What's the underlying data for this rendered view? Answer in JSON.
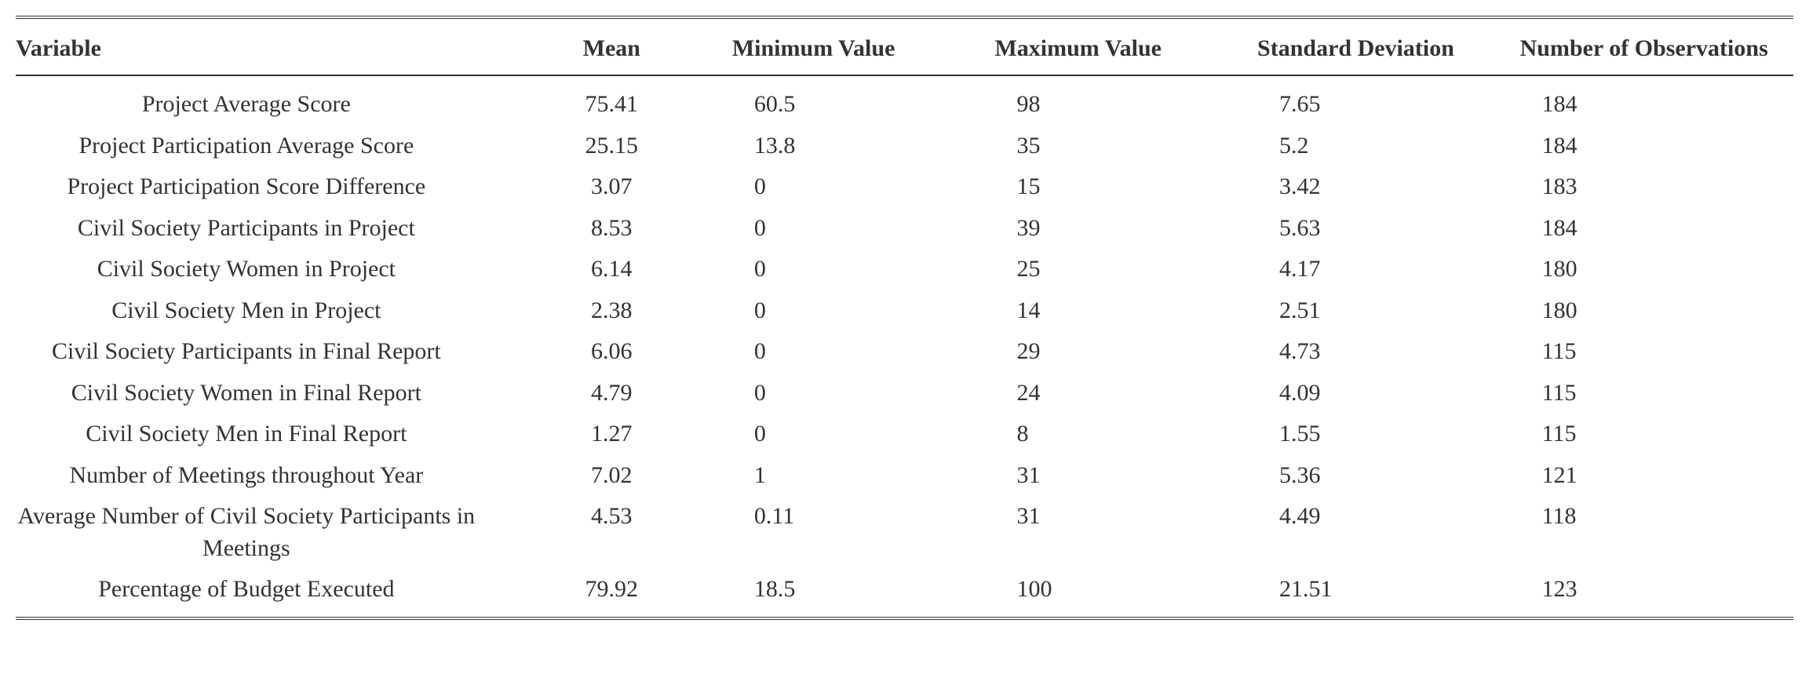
{
  "table": {
    "type": "table",
    "background_color": "#ffffff",
    "text_color": "#333333",
    "font_family": "Times New Roman",
    "font_size_pt": 22,
    "border_color": "#333333",
    "columns": [
      {
        "key": "variable",
        "label": "Variable",
        "align": "center",
        "header_align": "left"
      },
      {
        "key": "mean",
        "label": "Mean",
        "align": "center",
        "header_align": "center"
      },
      {
        "key": "min",
        "label": "Minimum Value",
        "align": "left",
        "header_align": "left"
      },
      {
        "key": "max",
        "label": "Maximum Value",
        "align": "left",
        "header_align": "left"
      },
      {
        "key": "std",
        "label": "Standard Deviation",
        "align": "left",
        "header_align": "left"
      },
      {
        "key": "obs",
        "label": "Number of Observations",
        "align": "left",
        "header_align": "left"
      }
    ],
    "rows": [
      {
        "variable": "Project Average Score",
        "mean": "75.41",
        "min": "60.5",
        "max": "98",
        "std": "7.65",
        "obs": "184"
      },
      {
        "variable": "Project Participation Average Score",
        "mean": "25.15",
        "min": "13.8",
        "max": "35",
        "std": "5.2",
        "obs": "184"
      },
      {
        "variable": "Project Participation Score Difference",
        "mean": "3.07",
        "min": "0",
        "max": "15",
        "std": "3.42",
        "obs": "183"
      },
      {
        "variable": "Civil Society Participants in Project",
        "mean": "8.53",
        "min": "0",
        "max": "39",
        "std": "5.63",
        "obs": "184"
      },
      {
        "variable": "Civil Society Women in Project",
        "mean": "6.14",
        "min": "0",
        "max": "25",
        "std": "4.17",
        "obs": "180"
      },
      {
        "variable": "Civil Society Men in Project",
        "mean": "2.38",
        "min": "0",
        "max": "14",
        "std": "2.51",
        "obs": "180"
      },
      {
        "variable": "Civil Society Participants in Final Report",
        "mean": "6.06",
        "min": "0",
        "max": "29",
        "std": "4.73",
        "obs": "115"
      },
      {
        "variable": "Civil Society Women in Final Report",
        "mean": "4.79",
        "min": "0",
        "max": "24",
        "std": "4.09",
        "obs": "115"
      },
      {
        "variable": "Civil Society Men in Final Report",
        "mean": "1.27",
        "min": "0",
        "max": "8",
        "std": "1.55",
        "obs": "115"
      },
      {
        "variable": "Number of Meetings throughout Year",
        "mean": "7.02",
        "min": "1",
        "max": "31",
        "std": "5.36",
        "obs": "121"
      },
      {
        "variable": "Average Number of Civil Society Participants in Meetings",
        "mean": "4.53",
        "min": "0.11",
        "max": "31",
        "std": "4.49",
        "obs": "118"
      },
      {
        "variable": "Percentage of Budget Executed",
        "mean": "79.92",
        "min": "18.5",
        "max": "100",
        "std": "21.51",
        "obs": "123"
      }
    ]
  }
}
